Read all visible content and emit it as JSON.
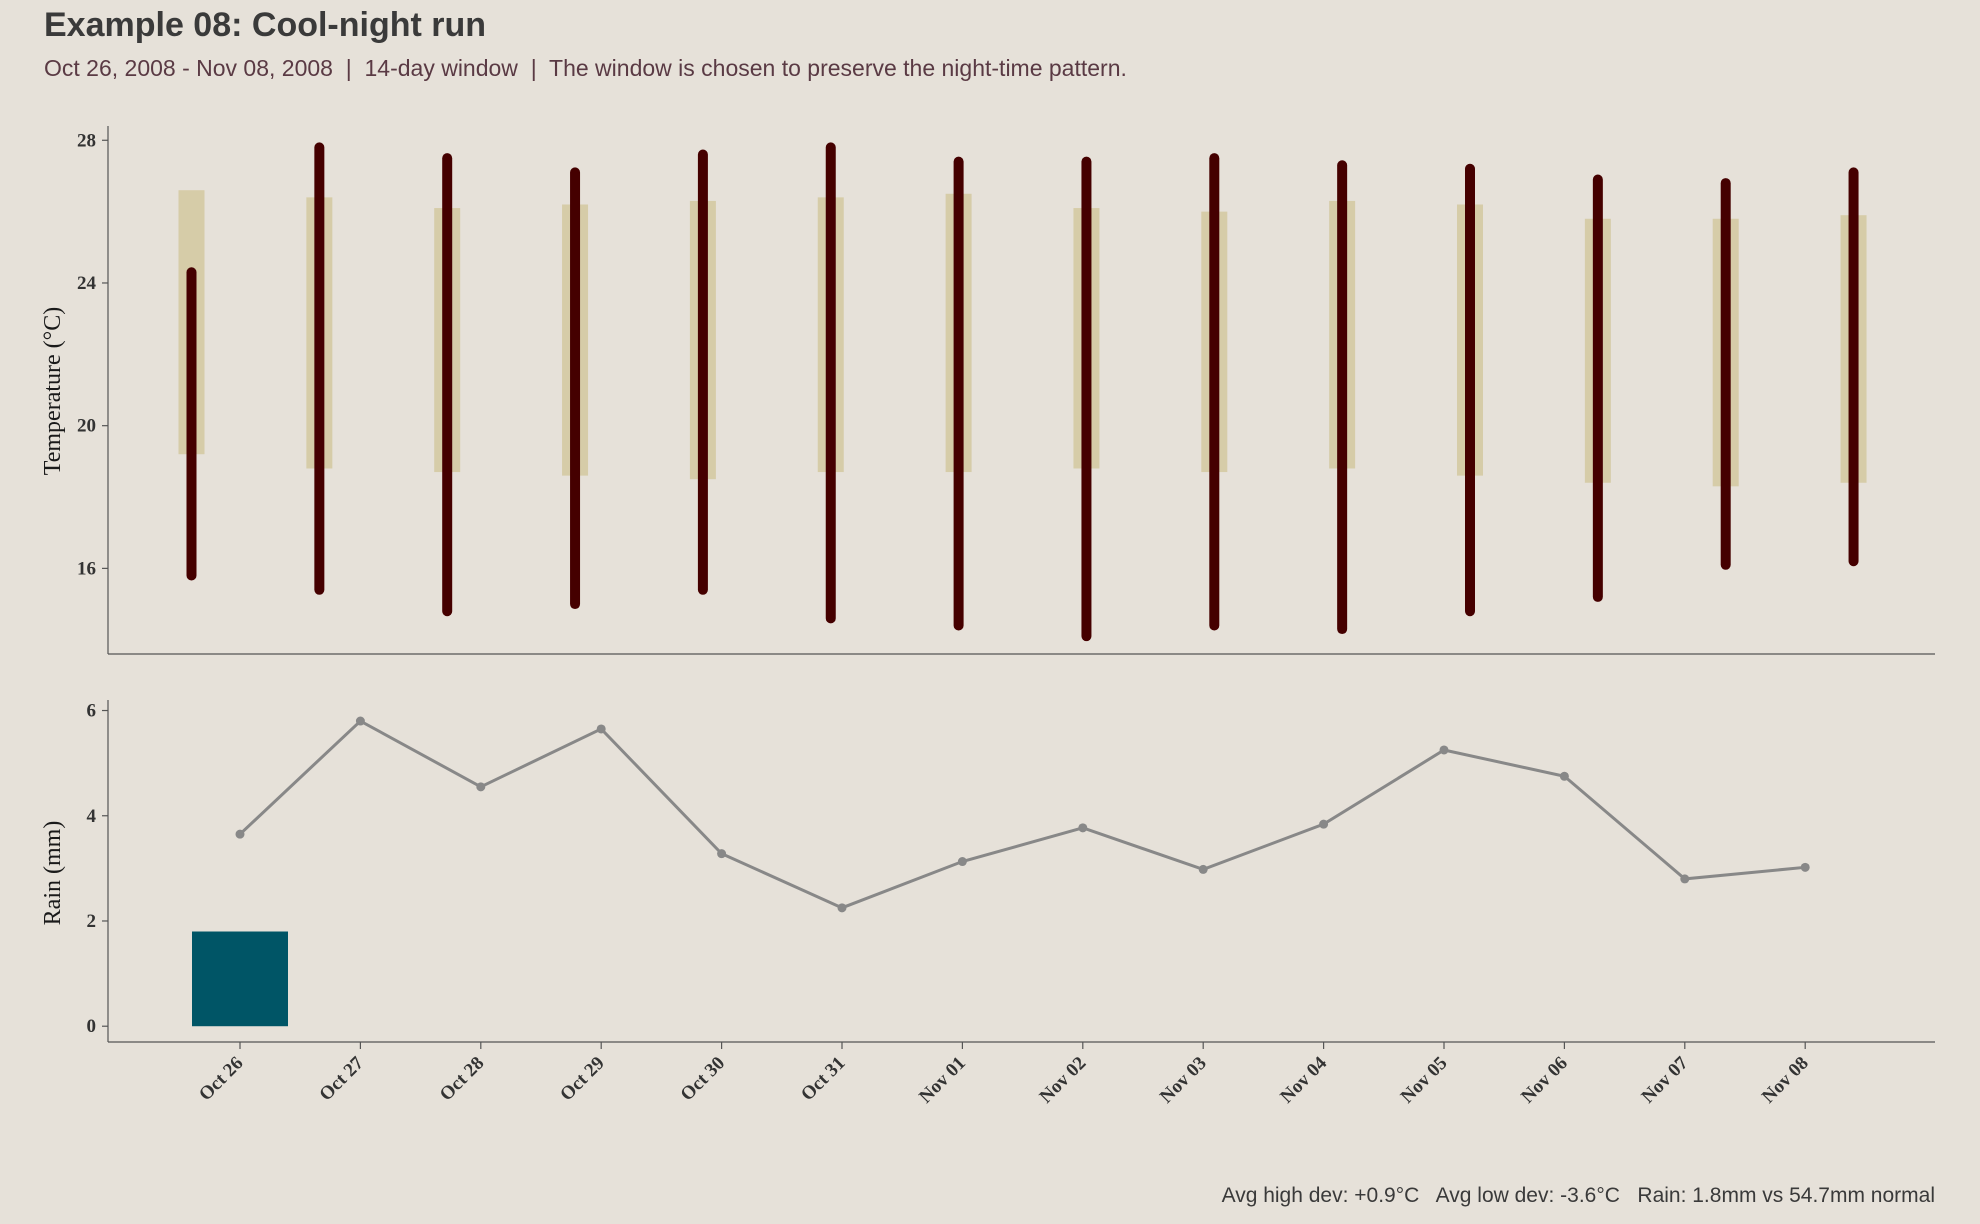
{
  "header": {
    "title": "Example 08: Cool-night run",
    "subtitle": "Oct 26, 2008 - Nov 08, 2008  |  14-day window  |  The window is chosen to preserve the night-time pattern."
  },
  "footer": {
    "summary": "Avg high dev: +0.9°C   Avg low dev: -3.6°C   Rain: 1.8mm vs 54.7mm normal"
  },
  "colors": {
    "background": "#e6e1d9",
    "normal_band": "#d6cca8",
    "actual_range": "#450000",
    "rain_bar": "#005566",
    "rain_line": "#888888",
    "axis": "#555555"
  },
  "chart_data": [
    {
      "type": "range-bar",
      "panel": "temperature",
      "ylabel": "Temperature (°C)",
      "yticks": [
        16,
        20,
        24,
        28
      ],
      "ylim": [
        13.6,
        28.4
      ],
      "categories": [
        "Oct 26",
        "Oct 27",
        "Oct 28",
        "Oct 29",
        "Oct 30",
        "Oct 31",
        "Nov 01",
        "Nov 02",
        "Nov 03",
        "Nov 04",
        "Nov 05",
        "Nov 06",
        "Nov 07",
        "Nov 08"
      ],
      "series": [
        {
          "role": "normal_range",
          "low": [
            19.2,
            18.8,
            18.7,
            18.6,
            18.5,
            18.7,
            18.7,
            18.8,
            18.7,
            18.8,
            18.6,
            18.4,
            18.3,
            18.4
          ],
          "high": [
            26.6,
            26.4,
            26.1,
            26.2,
            26.3,
            26.4,
            26.5,
            26.1,
            26.0,
            26.3,
            26.2,
            25.8,
            25.8,
            25.9
          ]
        },
        {
          "role": "actual_range",
          "low": [
            15.8,
            15.4,
            14.8,
            15.0,
            15.4,
            14.6,
            14.4,
            14.1,
            14.4,
            14.3,
            14.8,
            15.2,
            16.1,
            16.2
          ],
          "high": [
            24.3,
            27.8,
            27.5,
            27.1,
            27.6,
            27.8,
            27.4,
            27.4,
            27.5,
            27.3,
            27.2,
            26.9,
            26.8,
            27.1
          ]
        }
      ]
    },
    {
      "type": "bar+line",
      "panel": "rain",
      "ylabel": "Rain (mm)",
      "yticks": [
        0,
        2,
        4,
        6
      ],
      "ylim": [
        -0.3,
        6.2
      ],
      "categories": [
        "Oct 26",
        "Oct 27",
        "Oct 28",
        "Oct 29",
        "Oct 30",
        "Oct 31",
        "Nov 01",
        "Nov 02",
        "Nov 03",
        "Nov 04",
        "Nov 05",
        "Nov 06",
        "Nov 07",
        "Nov 08"
      ],
      "series": [
        {
          "role": "cumulative_rain_bar",
          "values": [
            1.8,
            0,
            0,
            0,
            0,
            0,
            0,
            0,
            0,
            0,
            0,
            0,
            0,
            0
          ]
        },
        {
          "role": "normal_rain_line",
          "values": [
            3.65,
            5.8,
            4.55,
            5.65,
            3.28,
            2.25,
            3.13,
            3.77,
            2.98,
            3.84,
            5.25,
            4.75,
            2.8,
            3.02
          ]
        }
      ]
    }
  ]
}
